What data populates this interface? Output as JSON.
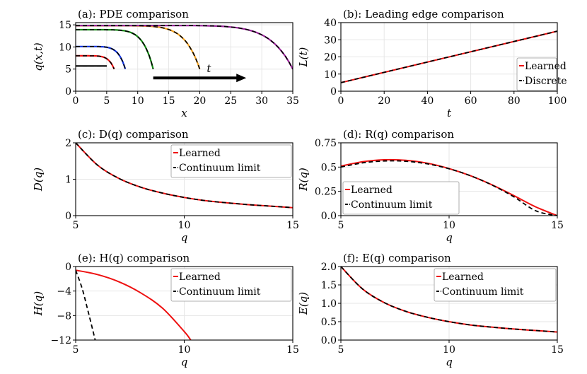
{
  "colors": {
    "red": "#ee1111",
    "black": "#000000",
    "blue": "#1133dd",
    "green": "#118811",
    "orange": "#f0a020",
    "purple": "#992299",
    "grid": "#e6e6e6"
  },
  "chart_data": [
    {
      "id": "a",
      "type": "line",
      "title": "(a): PDE comparison",
      "xlabel": "x",
      "ylabel": "q(x,t)",
      "xlim": [
        0,
        35
      ],
      "ylim": [
        0,
        15.5
      ],
      "xticks": [
        "0",
        "5",
        "10",
        "15",
        "20",
        "25",
        "30",
        "35"
      ],
      "xtick_values": [
        0,
        5,
        10,
        15,
        20,
        25,
        30,
        35
      ],
      "yticks": [
        "0",
        "5",
        "10",
        "15"
      ],
      "ytick_values": [
        0,
        5,
        10,
        15
      ],
      "arrow_label": "t",
      "arrow_from": [
        12.5,
        3.0
      ],
      "arrow_to": [
        27.5,
        3.0
      ],
      "series": [
        {
          "color": "black",
          "L": 5,
          "amp": 5.7
        },
        {
          "color": "red",
          "L": 6.2,
          "amp": 8.0
        },
        {
          "color": "blue",
          "L": 8,
          "amp": 10.1
        },
        {
          "color": "green",
          "L": 12.5,
          "amp": 13.9
        },
        {
          "color": "orange",
          "L": 20,
          "amp": 14.8
        },
        {
          "color": "purple",
          "L": 35,
          "amp": 14.85
        }
      ],
      "grid": true
    },
    {
      "id": "b",
      "type": "line",
      "title": "(b): Leading edge comparison",
      "xlabel": "t",
      "ylabel": "L(t)",
      "xlim": [
        0,
        100
      ],
      "ylim": [
        0,
        40
      ],
      "xticks": [
        "0",
        "20",
        "40",
        "60",
        "80",
        "100"
      ],
      "xtick_values": [
        0,
        20,
        40,
        60,
        80,
        100
      ],
      "yticks": [
        "0",
        "10",
        "20",
        "30",
        "40"
      ],
      "ytick_values": [
        0,
        10,
        20,
        30,
        40
      ],
      "series": [
        {
          "name": "Learned",
          "color": "red",
          "x": [
            0,
            100
          ],
          "y": [
            5,
            35
          ]
        },
        {
          "name": "Discrete",
          "color": "black",
          "dashed": true,
          "x": [
            0,
            100
          ],
          "y": [
            5,
            35
          ]
        }
      ],
      "legend": "bottom-right",
      "grid": true
    },
    {
      "id": "c",
      "type": "line",
      "title": "(c): D(q) comparison",
      "xlabel": "q",
      "ylabel": "D(q)",
      "xlim": [
        5,
        15
      ],
      "ylim": [
        0,
        2
      ],
      "xticks": [
        "5",
        "10",
        "15"
      ],
      "xtick_values": [
        5,
        10,
        15
      ],
      "yticks": [
        "0",
        "1",
        "2"
      ],
      "ytick_values": [
        0,
        1,
        2
      ],
      "series": [
        {
          "name": "Learned",
          "color": "red",
          "x": [
            5,
            6,
            7,
            8,
            9,
            10,
            11,
            12,
            13,
            14,
            15
          ],
          "y": [
            2.0,
            1.39,
            1.02,
            0.78,
            0.62,
            0.5,
            0.41,
            0.35,
            0.3,
            0.26,
            0.22
          ]
        },
        {
          "name": "Continuum limit",
          "color": "black",
          "dashed": true,
          "x": [
            5,
            6,
            7,
            8,
            9,
            10,
            11,
            12,
            13,
            14,
            15
          ],
          "y": [
            2.0,
            1.39,
            1.02,
            0.78,
            0.62,
            0.5,
            0.41,
            0.35,
            0.3,
            0.26,
            0.22
          ]
        }
      ],
      "legend": "top-right",
      "grid": true
    },
    {
      "id": "d",
      "type": "line",
      "title": "(d): R(q) comparison",
      "xlabel": "q",
      "ylabel": "R(q)",
      "xlim": [
        5,
        15
      ],
      "ylim": [
        0,
        0.75
      ],
      "xticks": [
        "5",
        "10",
        "15"
      ],
      "xtick_values": [
        5,
        10,
        15
      ],
      "yticks": [
        "0.0",
        "0.25",
        "0.5",
        "0.75"
      ],
      "ytick_values": [
        0,
        0.25,
        0.5,
        0.75
      ],
      "series": [
        {
          "name": "Learned",
          "color": "red",
          "x": [
            5,
            6,
            7,
            8,
            9,
            10,
            11,
            12,
            13,
            14,
            15
          ],
          "y": [
            0.51,
            0.555,
            0.575,
            0.57,
            0.54,
            0.485,
            0.41,
            0.315,
            0.205,
            0.09,
            0.0
          ]
        },
        {
          "name": "Continuum limit",
          "color": "black",
          "dashed": true,
          "x": [
            5,
            6,
            7,
            8,
            9,
            10,
            11,
            12,
            13,
            14,
            15
          ],
          "y": [
            0.5,
            0.543,
            0.563,
            0.56,
            0.533,
            0.483,
            0.41,
            0.313,
            0.193,
            0.05,
            0.0
          ]
        }
      ],
      "legend": "bottom-left",
      "grid": true
    },
    {
      "id": "e",
      "type": "line",
      "title": "(e): H(q) comparison",
      "xlabel": "q",
      "ylabel": "H(q)",
      "xlim": [
        5,
        15
      ],
      "ylim": [
        -12,
        0
      ],
      "xticks": [
        "5",
        "10",
        "15"
      ],
      "xtick_values": [
        5,
        10,
        15
      ],
      "yticks": [
        "−12",
        "−8",
        "−4",
        "0"
      ],
      "ytick_values": [
        -12,
        -8,
        -4,
        0
      ],
      "series": [
        {
          "name": "Learned",
          "color": "red",
          "x": [
            5,
            6,
            7,
            8,
            9,
            10,
            10.3
          ],
          "y": [
            -0.6,
            -1.3,
            -2.5,
            -4.3,
            -6.8,
            -10.6,
            -12.0
          ]
        },
        {
          "name": "Continuum limit",
          "color": "black",
          "dashed": true,
          "x": [
            5,
            5.3,
            5.6,
            5.9
          ],
          "y": [
            -0.6,
            -3.6,
            -7.7,
            -12.0
          ]
        }
      ],
      "legend": "top-right",
      "grid": true
    },
    {
      "id": "f",
      "type": "line",
      "title": "(f): E(q) comparison",
      "xlabel": "q",
      "ylabel": "E(q)",
      "xlim": [
        5,
        15
      ],
      "ylim": [
        0,
        2
      ],
      "xticks": [
        "5",
        "10",
        "15"
      ],
      "xtick_values": [
        5,
        10,
        15
      ],
      "yticks": [
        "0.0",
        "0.5",
        "1.0",
        "1.5",
        "2.0"
      ],
      "ytick_values": [
        0,
        0.5,
        1,
        1.5,
        2
      ],
      "series": [
        {
          "name": "Learned",
          "color": "red",
          "x": [
            5,
            6,
            7,
            8,
            9,
            10,
            11,
            12,
            13,
            14,
            15
          ],
          "y": [
            2.0,
            1.39,
            1.02,
            0.78,
            0.62,
            0.5,
            0.41,
            0.35,
            0.3,
            0.26,
            0.22
          ]
        },
        {
          "name": "Continuum limit",
          "color": "black",
          "dashed": true,
          "x": [
            5,
            6,
            7,
            8,
            9,
            10,
            11,
            12,
            13,
            14,
            15
          ],
          "y": [
            2.0,
            1.39,
            1.02,
            0.78,
            0.62,
            0.5,
            0.41,
            0.35,
            0.3,
            0.26,
            0.22
          ]
        }
      ],
      "legend": "top-right",
      "grid": true
    }
  ]
}
